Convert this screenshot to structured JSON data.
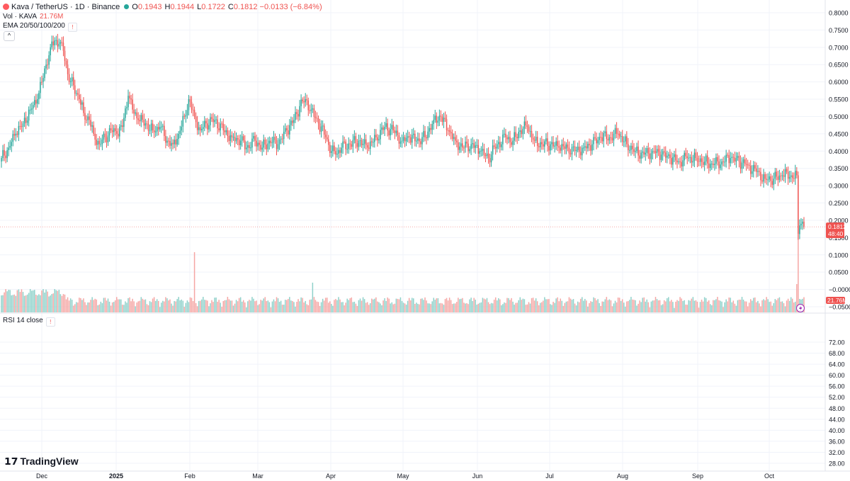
{
  "header": {
    "symbol": "Kava / TetherUS · 1D · Binance",
    "open_label": "O",
    "open": "0.1943",
    "high_label": "H",
    "high": "0.1944",
    "low_label": "L",
    "low": "0.1722",
    "close_label": "C",
    "close": "0.1812",
    "change": "−0.0133 (−6.84%)"
  },
  "volume_legend": {
    "label": "Vol · KAVA",
    "value": "21.76M"
  },
  "ema_legend": {
    "label": "EMA 20/50/100/200"
  },
  "rsi_legend": {
    "label": "RSI 14 close"
  },
  "price_badge": {
    "price": "0.1812",
    "countdown": "48:40"
  },
  "volume_badge": "21.76M",
  "brand": "TradingView",
  "colors": {
    "up": "#26a69a",
    "down": "#ef5350",
    "up_vol": "#8fd1ca",
    "down_vol": "#f5a6a4",
    "grid": "#f0f3fa",
    "axis_text": "#131722"
  },
  "chart_data": {
    "type": "candlestick",
    "x_tick_labels": [
      "Dec",
      "2025",
      "Feb",
      "Mar",
      "Apr",
      "May",
      "Jun",
      "Jul",
      "Aug",
      "Sep",
      "Oct"
    ],
    "price_axis": [
      "0.8000",
      "0.7500",
      "0.7000",
      "0.6500",
      "0.6000",
      "0.5500",
      "0.5000",
      "0.4500",
      "0.4000",
      "0.3500",
      "0.3000",
      "0.2500",
      "0.2000",
      "0.1500",
      "0.1000",
      "0.0500",
      "−0.0000",
      "−0.0500"
    ],
    "price_range": [
      -0.05,
      0.8
    ],
    "rsi_axis": [
      "72.00",
      "68.00",
      "64.00",
      "60.00",
      "56.00",
      "52.00",
      "48.00",
      "44.00",
      "40.00",
      "36.00",
      "32.00",
      "28.00"
    ],
    "rsi_range": [
      28,
      72
    ],
    "last_price": 0.1812,
    "price_anchors": [
      [
        0,
        0.38
      ],
      [
        5,
        0.41
      ],
      [
        10,
        0.45
      ],
      [
        15,
        0.48
      ],
      [
        20,
        0.52
      ],
      [
        25,
        0.55
      ],
      [
        28,
        0.6
      ],
      [
        31,
        0.65
      ],
      [
        34,
        0.7
      ],
      [
        37,
        0.72
      ],
      [
        40,
        0.71
      ],
      [
        43,
        0.69
      ],
      [
        45,
        0.65
      ],
      [
        47,
        0.6
      ],
      [
        50,
        0.59
      ],
      [
        54,
        0.55
      ],
      [
        57,
        0.51
      ],
      [
        61,
        0.49
      ],
      [
        64,
        0.45
      ],
      [
        68,
        0.42
      ],
      [
        72,
        0.44
      ],
      [
        76,
        0.46
      ],
      [
        80,
        0.45
      ],
      [
        84,
        0.47
      ],
      [
        88,
        0.56
      ],
      [
        91,
        0.52
      ],
      [
        95,
        0.49
      ],
      [
        100,
        0.48
      ],
      [
        105,
        0.46
      ],
      [
        110,
        0.47
      ],
      [
        115,
        0.43
      ],
      [
        119,
        0.42
      ],
      [
        123,
        0.45
      ],
      [
        127,
        0.5
      ],
      [
        130,
        0.55
      ],
      [
        134,
        0.5
      ],
      [
        138,
        0.46
      ],
      [
        142,
        0.48
      ],
      [
        148,
        0.49
      ],
      [
        154,
        0.46
      ],
      [
        160,
        0.44
      ],
      [
        166,
        0.43
      ],
      [
        170,
        0.41
      ],
      [
        176,
        0.43
      ],
      [
        181,
        0.41
      ],
      [
        186,
        0.43
      ],
      [
        192,
        0.42
      ],
      [
        198,
        0.46
      ],
      [
        203,
        0.49
      ],
      [
        207,
        0.53
      ],
      [
        211,
        0.55
      ],
      [
        215,
        0.52
      ],
      [
        220,
        0.48
      ],
      [
        225,
        0.44
      ],
      [
        229,
        0.4
      ],
      [
        232,
        0.39
      ],
      [
        236,
        0.41
      ],
      [
        242,
        0.42
      ],
      [
        248,
        0.43
      ],
      [
        254,
        0.41
      ],
      [
        260,
        0.44
      ],
      [
        266,
        0.47
      ],
      [
        272,
        0.46
      ],
      [
        278,
        0.43
      ],
      [
        283,
        0.44
      ],
      [
        288,
        0.43
      ],
      [
        294,
        0.44
      ],
      [
        300,
        0.49
      ],
      [
        305,
        0.5
      ],
      [
        310,
        0.46
      ],
      [
        315,
        0.43
      ],
      [
        320,
        0.41
      ],
      [
        326,
        0.42
      ],
      [
        332,
        0.4
      ],
      [
        338,
        0.38
      ],
      [
        344,
        0.42
      ],
      [
        350,
        0.44
      ],
      [
        355,
        0.43
      ],
      [
        360,
        0.46
      ],
      [
        365,
        0.47
      ],
      [
        370,
        0.43
      ],
      [
        375,
        0.42
      ],
      [
        381,
        0.42
      ],
      [
        387,
        0.41
      ],
      [
        393,
        0.41
      ],
      [
        398,
        0.4
      ],
      [
        404,
        0.41
      ],
      [
        410,
        0.42
      ],
      [
        416,
        0.44
      ],
      [
        422,
        0.44
      ],
      [
        428,
        0.45
      ],
      [
        434,
        0.42
      ],
      [
        440,
        0.4
      ],
      [
        446,
        0.39
      ],
      [
        452,
        0.4
      ],
      [
        458,
        0.39
      ],
      [
        464,
        0.38
      ],
      [
        470,
        0.37
      ],
      [
        476,
        0.38
      ],
      [
        482,
        0.38
      ],
      [
        488,
        0.37
      ],
      [
        494,
        0.36
      ],
      [
        500,
        0.37
      ],
      [
        506,
        0.38
      ],
      [
        512,
        0.37
      ],
      [
        518,
        0.36
      ],
      [
        524,
        0.34
      ],
      [
        530,
        0.32
      ],
      [
        536,
        0.32
      ],
      [
        542,
        0.33
      ],
      [
        548,
        0.33
      ],
      [
        552,
        0.33
      ],
      [
        553,
        0.16
      ],
      [
        554,
        0.185
      ],
      [
        555,
        0.19
      ],
      [
        556,
        0.196
      ],
      [
        557,
        0.181
      ]
    ],
    "rsi_visible": false
  }
}
